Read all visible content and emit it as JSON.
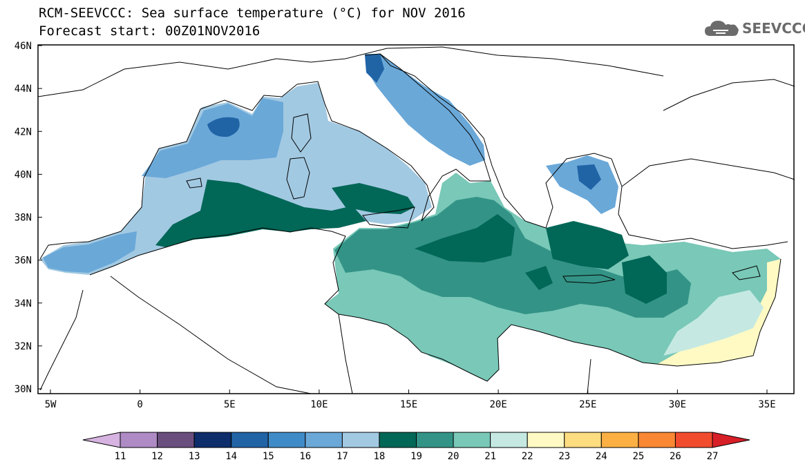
{
  "title": {
    "line1": "RCM-SEEVCCC: Sea surface temperature (°C) for NOV 2016",
    "line2": "Forecast start: 00Z01NOV2016"
  },
  "logo": {
    "text": "SEEVCCC",
    "icon": "cloud-logo-icon"
  },
  "map": {
    "lat_labels": [
      "46N",
      "44N",
      "42N",
      "40N",
      "38N",
      "36N",
      "34N",
      "32N",
      "30N"
    ],
    "lon_labels": [
      "5W",
      "0",
      "5E",
      "10E",
      "15E",
      "20E",
      "25E",
      "30E",
      "35E"
    ]
  },
  "colorbar": {
    "labels": [
      "11",
      "12",
      "13",
      "14",
      "15",
      "16",
      "17",
      "18",
      "19",
      "20",
      "21",
      "22",
      "23",
      "24",
      "25",
      "26",
      "27"
    ],
    "colors": [
      "#d6b3e0",
      "#ae8bc4",
      "#6a4e7e",
      "#0d2d6b",
      "#2164a6",
      "#3f8bc7",
      "#6aa8d8",
      "#a2c9e2",
      "#016757",
      "#339386",
      "#79c8b8",
      "#c5e9e2",
      "#fffac4",
      "#fedc80",
      "#fcb043",
      "#f98733",
      "#f24c2e",
      "#d71f27"
    ]
  }
}
